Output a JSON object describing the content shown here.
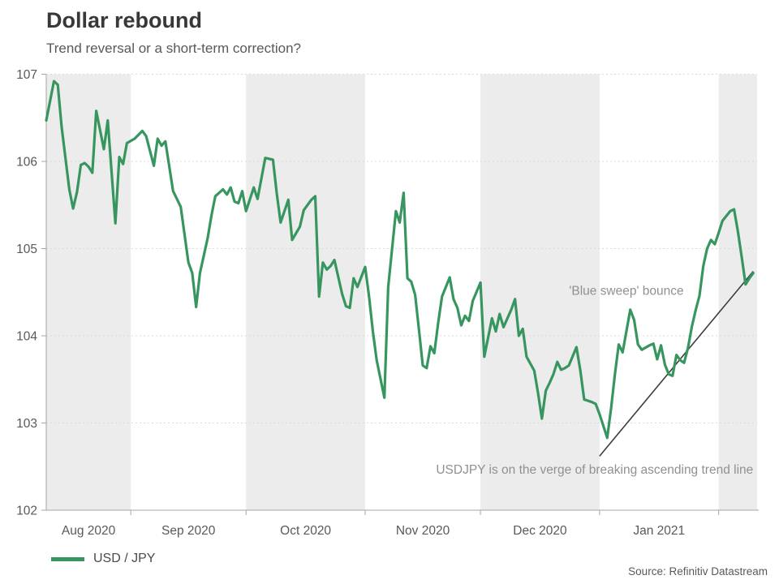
{
  "header": {
    "title": "Dollar rebound",
    "subtitle": "Trend reversal or a short-term correction?"
  },
  "legend": {
    "label": "USD / JPY"
  },
  "footer": {
    "source": "Source: Refinitiv Datastream"
  },
  "chart_data": {
    "type": "line",
    "title": "Dollar rebound",
    "subtitle": "Trend reversal or a short-term correction?",
    "xlabel": "",
    "ylabel": "",
    "ylim": [
      102,
      107
    ],
    "y_ticks": [
      107,
      106,
      105,
      104,
      103,
      102
    ],
    "x_domain": [
      "2020-08-10",
      "2021-02-11"
    ],
    "x_tick_labels": [
      "Aug 2020",
      "Sep 2020",
      "Oct 2020",
      "Nov 2020",
      "Dec 2020",
      "Jan 2021"
    ],
    "grid": "dotted horizontal",
    "background_bands": "alternate months shaded",
    "band_color": "#ECECEC",
    "legend_position": "bottom-left",
    "series": [
      {
        "name": "USD / JPY",
        "color": "#37965F",
        "points": [
          [
            "2020-08-10",
            106.47
          ],
          [
            "2020-08-12",
            106.92
          ],
          [
            "2020-08-13",
            106.88
          ],
          [
            "2020-08-14",
            106.4
          ],
          [
            "2020-08-16",
            105.68
          ],
          [
            "2020-08-17",
            105.46
          ],
          [
            "2020-08-18",
            105.65
          ],
          [
            "2020-08-19",
            105.96
          ],
          [
            "2020-08-20",
            105.98
          ],
          [
            "2020-08-21",
            105.94
          ],
          [
            "2020-08-22",
            105.87
          ],
          [
            "2020-08-23",
            106.58
          ],
          [
            "2020-08-25",
            106.14
          ],
          [
            "2020-08-26",
            106.47
          ],
          [
            "2020-08-28",
            105.29
          ],
          [
            "2020-08-29",
            106.05
          ],
          [
            "2020-08-30",
            105.97
          ],
          [
            "2020-08-31",
            106.21
          ],
          [
            "2020-09-02",
            106.26
          ],
          [
            "2020-09-04",
            106.35
          ],
          [
            "2020-09-05",
            106.29
          ],
          [
            "2020-09-07",
            105.95
          ],
          [
            "2020-09-08",
            106.26
          ],
          [
            "2020-09-09",
            106.18
          ],
          [
            "2020-09-10",
            106.23
          ],
          [
            "2020-09-12",
            105.66
          ],
          [
            "2020-09-14",
            105.48
          ],
          [
            "2020-09-16",
            104.84
          ],
          [
            "2020-09-17",
            104.72
          ],
          [
            "2020-09-18",
            104.33
          ],
          [
            "2020-09-19",
            104.72
          ],
          [
            "2020-09-21",
            105.12
          ],
          [
            "2020-09-22",
            105.38
          ],
          [
            "2020-09-23",
            105.6
          ],
          [
            "2020-09-24",
            105.64
          ],
          [
            "2020-09-25",
            105.68
          ],
          [
            "2020-09-26",
            105.62
          ],
          [
            "2020-09-27",
            105.7
          ],
          [
            "2020-09-28",
            105.54
          ],
          [
            "2020-09-29",
            105.52
          ],
          [
            "2020-09-30",
            105.66
          ],
          [
            "2020-10-01",
            105.43
          ],
          [
            "2020-10-03",
            105.7
          ],
          [
            "2020-10-04",
            105.57
          ],
          [
            "2020-10-06",
            106.04
          ],
          [
            "2020-10-08",
            106.02
          ],
          [
            "2020-10-09",
            105.63
          ],
          [
            "2020-10-10",
            105.3
          ],
          [
            "2020-10-12",
            105.56
          ],
          [
            "2020-10-13",
            105.1
          ],
          [
            "2020-10-15",
            105.25
          ],
          [
            "2020-10-16",
            105.44
          ],
          [
            "2020-10-18",
            105.56
          ],
          [
            "2020-10-19",
            105.6
          ],
          [
            "2020-10-20",
            104.45
          ],
          [
            "2020-10-21",
            104.84
          ],
          [
            "2020-10-22",
            104.76
          ],
          [
            "2020-10-23",
            104.8
          ],
          [
            "2020-10-24",
            104.87
          ],
          [
            "2020-10-26",
            104.48
          ],
          [
            "2020-10-27",
            104.34
          ],
          [
            "2020-10-28",
            104.32
          ],
          [
            "2020-10-29",
            104.66
          ],
          [
            "2020-10-30",
            104.56
          ],
          [
            "2020-11-01",
            104.79
          ],
          [
            "2020-11-02",
            104.45
          ],
          [
            "2020-11-03",
            104.05
          ],
          [
            "2020-11-04",
            103.72
          ],
          [
            "2020-11-06",
            103.29
          ],
          [
            "2020-11-07",
            104.56
          ],
          [
            "2020-11-09",
            105.43
          ],
          [
            "2020-11-10",
            105.3
          ],
          [
            "2020-11-11",
            105.64
          ],
          [
            "2020-11-12",
            104.66
          ],
          [
            "2020-11-13",
            104.62
          ],
          [
            "2020-11-14",
            104.47
          ],
          [
            "2020-11-15",
            104.07
          ],
          [
            "2020-11-16",
            103.66
          ],
          [
            "2020-11-17",
            103.63
          ],
          [
            "2020-11-18",
            103.88
          ],
          [
            "2020-11-19",
            103.8
          ],
          [
            "2020-11-20",
            104.15
          ],
          [
            "2020-11-21",
            104.45
          ],
          [
            "2020-11-23",
            104.67
          ],
          [
            "2020-11-24",
            104.42
          ],
          [
            "2020-11-25",
            104.32
          ],
          [
            "2020-11-26",
            104.12
          ],
          [
            "2020-11-27",
            104.23
          ],
          [
            "2020-11-28",
            104.17
          ],
          [
            "2020-11-29",
            104.4
          ],
          [
            "2020-12-01",
            104.61
          ],
          [
            "2020-12-02",
            103.76
          ],
          [
            "2020-12-04",
            104.2
          ],
          [
            "2020-12-05",
            104.05
          ],
          [
            "2020-12-06",
            104.25
          ],
          [
            "2020-12-07",
            104.1
          ],
          [
            "2020-12-09",
            104.3
          ],
          [
            "2020-12-10",
            104.42
          ],
          [
            "2020-12-11",
            104.0
          ],
          [
            "2020-12-12",
            104.08
          ],
          [
            "2020-12-13",
            103.76
          ],
          [
            "2020-12-15",
            103.6
          ],
          [
            "2020-12-16",
            103.34
          ],
          [
            "2020-12-17",
            103.05
          ],
          [
            "2020-12-18",
            103.37
          ],
          [
            "2020-12-19",
            103.46
          ],
          [
            "2020-12-20",
            103.56
          ],
          [
            "2020-12-21",
            103.7
          ],
          [
            "2020-12-22",
            103.61
          ],
          [
            "2020-12-23",
            103.63
          ],
          [
            "2020-12-24",
            103.66
          ],
          [
            "2020-12-26",
            103.87
          ],
          [
            "2020-12-27",
            103.6
          ],
          [
            "2020-12-28",
            103.27
          ],
          [
            "2020-12-30",
            103.24
          ],
          [
            "2020-12-31",
            103.22
          ],
          [
            "2021-01-01",
            103.1
          ],
          [
            "2021-01-03",
            102.83
          ],
          [
            "2021-01-04",
            103.17
          ],
          [
            "2021-01-05",
            103.56
          ],
          [
            "2021-01-06",
            103.9
          ],
          [
            "2021-01-07",
            103.81
          ],
          [
            "2021-01-09",
            104.3
          ],
          [
            "2021-01-10",
            104.18
          ],
          [
            "2021-01-11",
            103.9
          ],
          [
            "2021-01-12",
            103.84
          ],
          [
            "2021-01-14",
            103.89
          ],
          [
            "2021-01-15",
            103.91
          ],
          [
            "2021-01-16",
            103.73
          ],
          [
            "2021-01-17",
            103.89
          ],
          [
            "2021-01-18",
            103.67
          ],
          [
            "2021-01-19",
            103.56
          ],
          [
            "2021-01-20",
            103.54
          ],
          [
            "2021-01-21",
            103.78
          ],
          [
            "2021-01-22",
            103.72
          ],
          [
            "2021-01-23",
            103.69
          ],
          [
            "2021-01-24",
            103.86
          ],
          [
            "2021-01-25",
            104.1
          ],
          [
            "2021-01-26",
            104.29
          ],
          [
            "2021-01-27",
            104.46
          ],
          [
            "2021-01-28",
            104.8
          ],
          [
            "2021-01-29",
            105.0
          ],
          [
            "2021-01-30",
            105.1
          ],
          [
            "2021-01-31",
            105.05
          ],
          [
            "2021-02-01",
            105.18
          ],
          [
            "2021-02-02",
            105.32
          ],
          [
            "2021-02-04",
            105.43
          ],
          [
            "2021-02-05",
            105.45
          ],
          [
            "2021-02-06",
            105.2
          ],
          [
            "2021-02-07",
            104.9
          ],
          [
            "2021-02-08",
            104.59
          ],
          [
            "2021-02-09",
            104.66
          ],
          [
            "2021-02-10",
            104.72
          ]
        ]
      }
    ],
    "trend_line": {
      "from": [
        "2021-01-01",
        102.62
      ],
      "to": [
        "2021-02-10",
        104.74
      ],
      "color": "#3d3d3d"
    },
    "annotations": [
      {
        "text": "'Blue sweep' bounce",
        "date": "2021-01-08",
        "value": 104.47,
        "anchor": "middle"
      },
      {
        "text": "USDJPY is on the verge of breaking ascending trend line",
        "date": "2021-02-10",
        "value": 102.42,
        "anchor": "end"
      }
    ],
    "source": "Source: Refinitiv Datastream"
  }
}
